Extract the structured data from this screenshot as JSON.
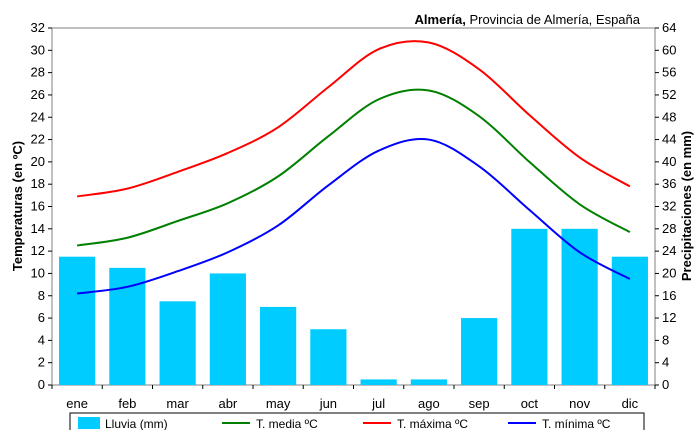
{
  "chart_data": {
    "type": "bar+line",
    "title_bold": "Almería,",
    "title_rest": " Provincia de Almería, España",
    "categories": [
      "ene",
      "feb",
      "mar",
      "abr",
      "may",
      "jun",
      "jul",
      "ago",
      "sep",
      "oct",
      "nov",
      "dic"
    ],
    "y_left": {
      "label": "Temperaturas (en ºC)",
      "min": 0,
      "max": 32,
      "step": 2
    },
    "y_right": {
      "label": "Precipitaciones (en mm)",
      "min": 0,
      "max": 64,
      "step": 4
    },
    "bars": {
      "name": "Lluvia (mm)",
      "color": "#00ccff",
      "values": [
        23,
        21,
        15,
        20,
        14,
        10,
        1,
        1,
        12,
        28,
        28,
        23
      ]
    },
    "lines": [
      {
        "name": "T. media ºC",
        "color": "#008000",
        "values": [
          12.5,
          13.2,
          14.7,
          16.3,
          18.7,
          22.3,
          25.6,
          26.4,
          24.1,
          20.0,
          16.2,
          13.7
        ]
      },
      {
        "name": "T. máxima ºC",
        "color": "#ff0000",
        "values": [
          16.9,
          17.6,
          19.1,
          20.8,
          23.1,
          26.7,
          30.1,
          30.7,
          28.3,
          24.2,
          20.4,
          17.8
        ]
      },
      {
        "name": "T. mínima ºC",
        "color": "#0000ff",
        "values": [
          8.2,
          8.8,
          10.2,
          11.9,
          14.3,
          17.9,
          21.0,
          22.0,
          19.6,
          15.7,
          11.9,
          9.5
        ]
      }
    ],
    "legend_position": "bottom",
    "grid": false
  }
}
